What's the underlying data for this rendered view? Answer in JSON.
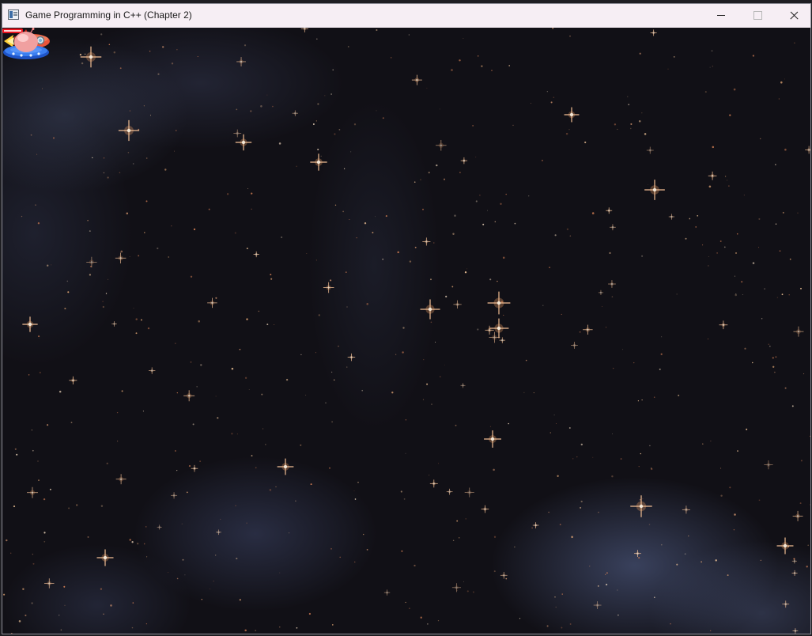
{
  "window": {
    "title": "Game Programming in C++ (Chapter 2)",
    "controls": [
      "minimize",
      "maximize",
      "close"
    ]
  },
  "scene": {
    "background": "starfield-nebula",
    "sprites": [
      {
        "name": "player-ship",
        "type": "rocket",
        "facing": "right"
      },
      {
        "name": "laser-bolt",
        "type": "laser",
        "color": "#e8141e"
      },
      {
        "name": "alien-ufo",
        "type": "ufo",
        "dome_color": "#f2a8a8",
        "saucer_color": "#2f6fe0"
      }
    ]
  },
  "colors": {
    "space": "#111016",
    "nebula": "#5a6896",
    "star_glow": "#e89a60",
    "titlebar": "#f6eef4"
  }
}
